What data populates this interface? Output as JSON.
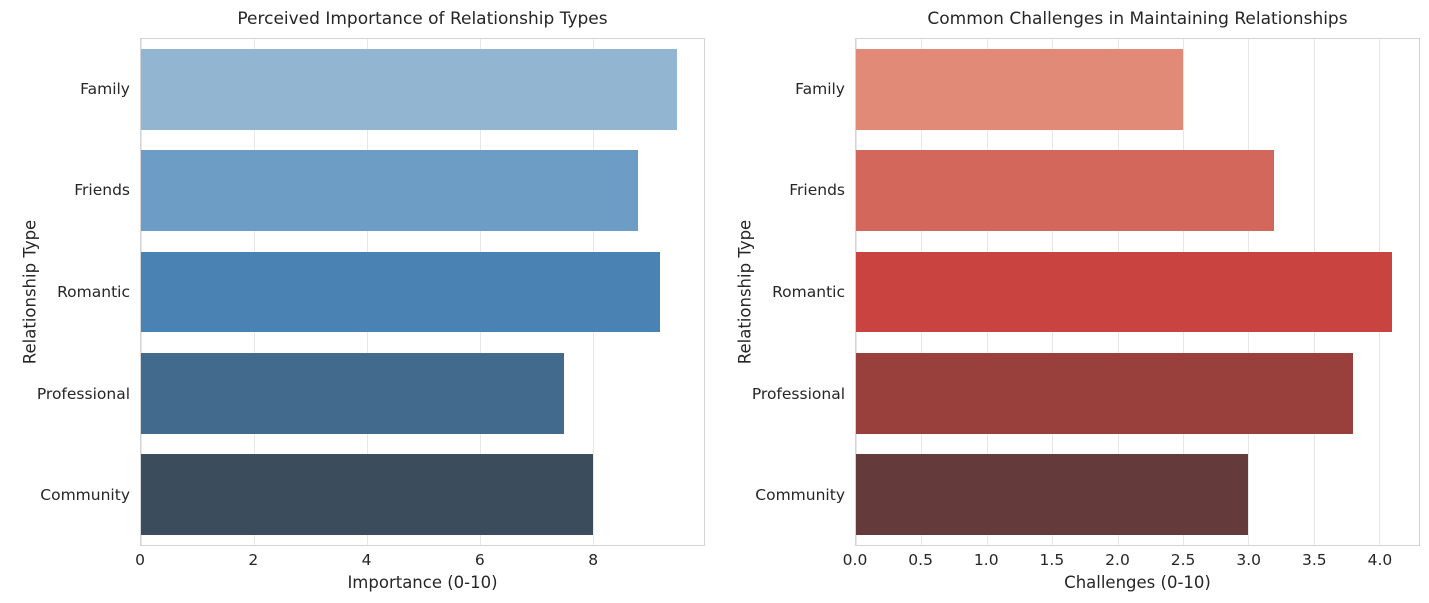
{
  "page": {
    "background": "#ffffff",
    "text_color": "#262626",
    "spine_color": "#d4d4d4",
    "grid_color": "#e7e7eb"
  },
  "chart_data": [
    {
      "type": "bar",
      "orientation": "horizontal",
      "title": "Perceived Importance of Relationship Types",
      "xlabel": "Importance (0-10)",
      "ylabel": "Relationship Type",
      "categories": [
        "Family",
        "Friends",
        "Romantic",
        "Professional",
        "Community"
      ],
      "values": [
        9.5,
        8.8,
        9.2,
        7.5,
        8.0
      ],
      "xlim": [
        0,
        9.975
      ],
      "xticks": [
        0,
        2,
        4,
        6,
        8
      ],
      "xtick_labels": [
        "0",
        "2",
        "4",
        "6",
        "8"
      ],
      "bar_colors": [
        "#92b5d1",
        "#6d9cc5",
        "#4a83b3",
        "#416a8c",
        "#3b4d5c"
      ],
      "grid": true,
      "legend_position": "none"
    },
    {
      "type": "bar",
      "orientation": "horizontal",
      "title": "Common Challenges in Maintaining Relationships",
      "xlabel": "Challenges (0-10)",
      "ylabel": "Relationship Type",
      "categories": [
        "Family",
        "Friends",
        "Romantic",
        "Professional",
        "Community"
      ],
      "values": [
        2.5,
        3.2,
        4.1,
        3.8,
        3.0
      ],
      "xlim": [
        0,
        4.305
      ],
      "xticks": [
        0,
        0.5,
        1,
        1.5,
        2,
        2.5,
        3,
        3.5,
        4
      ],
      "xtick_labels": [
        "0.0",
        "0.5",
        "1.0",
        "1.5",
        "2.0",
        "2.5",
        "3.0",
        "3.5",
        "4.0"
      ],
      "bar_colors": [
        "#e08a77",
        "#d4675c",
        "#c94441",
        "#9a403c",
        "#643a3a"
      ],
      "grid": true,
      "legend_position": "none"
    }
  ]
}
